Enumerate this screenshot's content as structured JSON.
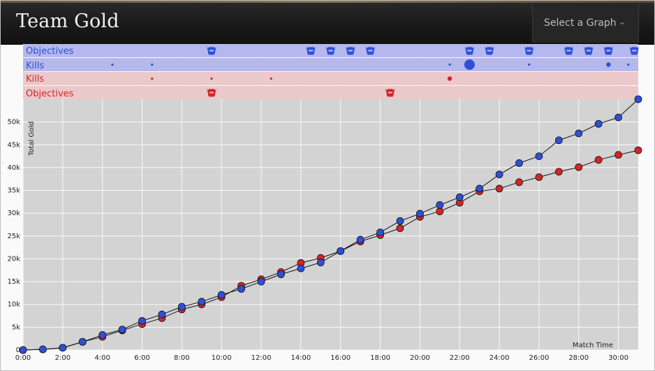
{
  "header": {
    "title": "Team Gold",
    "select_label": "Select a Graph",
    "select_icon": "chevron-down-icon"
  },
  "lanes": {
    "blue_objectives": "Objectives",
    "blue_kills": "Kills",
    "red_kills": "Kills",
    "red_objectives": "Objectives"
  },
  "colors": {
    "blue": "#2f4fd8",
    "red": "#d42525",
    "blue_lane": "#b4b8ec",
    "red_lane": "#ebc9ca",
    "plot_bg": "#d3d3d3"
  },
  "chart_data": {
    "type": "line",
    "xlabel": "Match Time",
    "ylabel": "Total Gold",
    "xlim": [
      0,
      31
    ],
    "ylim": [
      0,
      55000
    ],
    "x_ticks": [
      "0:00",
      "2:00",
      "4:00",
      "6:00",
      "8:00",
      "10:00",
      "12:00",
      "14:00",
      "16:00",
      "18:00",
      "20:00",
      "22:00",
      "24:00",
      "26:00",
      "28:00",
      "30:00"
    ],
    "y_ticks": [
      "0",
      "5k",
      "10k",
      "15k",
      "20k",
      "25k",
      "30k",
      "35k",
      "40k",
      "45k",
      "50k"
    ],
    "grid": true,
    "x": [
      0,
      1,
      2,
      3,
      4,
      5,
      6,
      7,
      8,
      9,
      10,
      11,
      12,
      13,
      14,
      15,
      16,
      17,
      18,
      19,
      20,
      21,
      22,
      23,
      24,
      25,
      26,
      27,
      28,
      29,
      30,
      31
    ],
    "series": [
      {
        "team": "blue",
        "values": [
          0,
          150,
          500,
          1800,
          3300,
          4500,
          6400,
          7800,
          9500,
          10600,
          12100,
          13400,
          15000,
          16600,
          17900,
          19200,
          21700,
          24200,
          25800,
          28300,
          29900,
          31800,
          33500,
          35400,
          38500,
          41000,
          42500,
          46000,
          47500,
          49600,
          51000,
          55000
        ]
      },
      {
        "team": "red",
        "values": [
          0,
          150,
          500,
          1800,
          2900,
          4300,
          5700,
          7000,
          8900,
          10000,
          11600,
          14100,
          15500,
          17100,
          19100,
          20200,
          21700,
          23800,
          25200,
          26700,
          29200,
          30400,
          32300,
          34800,
          35400,
          36800,
          37900,
          39100,
          40100,
          41700,
          42800,
          43800
        ]
      }
    ],
    "events": {
      "blue_objectives": [
        9.5,
        14.5,
        15.5,
        16.5,
        17.5,
        22.5,
        23.5,
        25.5,
        27.5,
        28.5,
        29.5,
        30.8
      ],
      "blue_kills": [
        {
          "t": 4.5,
          "size": 1
        },
        {
          "t": 6.5,
          "size": 1
        },
        {
          "t": 21.5,
          "size": 1
        },
        {
          "t": 22.5,
          "size": 4
        },
        {
          "t": 25.5,
          "size": 1
        },
        {
          "t": 29.5,
          "size": 2
        },
        {
          "t": 30.5,
          "size": 1
        }
      ],
      "red_kills": [
        {
          "t": 6.5,
          "size": 1
        },
        {
          "t": 9.5,
          "size": 1
        },
        {
          "t": 12.5,
          "size": 1
        },
        {
          "t": 21.5,
          "size": 2
        }
      ],
      "red_objectives": [
        9.5,
        18.5
      ]
    }
  }
}
